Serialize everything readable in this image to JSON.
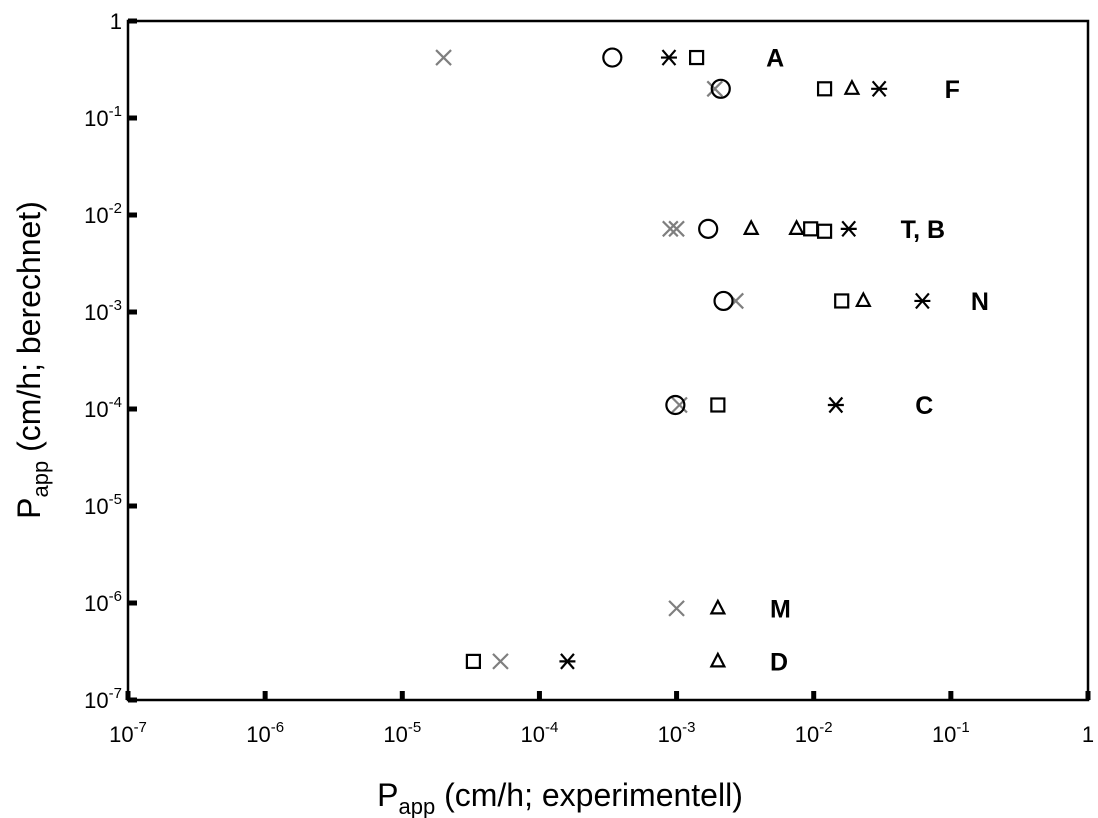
{
  "chart_data": {
    "type": "scatter",
    "xlabel": {
      "main": "P",
      "sub": "app",
      "rest": " (cm/h; experimentell)"
    },
    "ylabel": {
      "main": "P",
      "sub": "app",
      "rest": " (cm/h; berechnet)"
    },
    "x_scale": "log",
    "y_scale": "log",
    "xlim": [
      1e-07,
      1
    ],
    "ylim": [
      1e-07,
      1
    ],
    "grid": false,
    "legend": "none",
    "x_ticks": [
      {
        "base": "10",
        "exp": "-7",
        "value": 1e-07
      },
      {
        "base": "10",
        "exp": "-6",
        "value": 1e-06
      },
      {
        "base": "10",
        "exp": "-5",
        "value": 1e-05
      },
      {
        "base": "10",
        "exp": "-4",
        "value": 0.0001
      },
      {
        "base": "10",
        "exp": "-3",
        "value": 0.001
      },
      {
        "base": "10",
        "exp": "-2",
        "value": 0.01
      },
      {
        "base": "10",
        "exp": "-1",
        "value": 0.1
      },
      {
        "base": "1",
        "exp": "",
        "value": 1
      }
    ],
    "y_ticks": [
      {
        "base": "10",
        "exp": "-7",
        "value": 1e-07
      },
      {
        "base": "10",
        "exp": "-6",
        "value": 1e-06
      },
      {
        "base": "10",
        "exp": "-5",
        "value": 1e-05
      },
      {
        "base": "10",
        "exp": "-4",
        "value": 0.0001
      },
      {
        "base": "10",
        "exp": "-3",
        "value": 0.001
      },
      {
        "base": "10",
        "exp": "-2",
        "value": 0.01
      },
      {
        "base": "10",
        "exp": "-1",
        "value": 0.1
      },
      {
        "base": "1",
        "exp": "",
        "value": 1
      }
    ],
    "series": [
      {
        "marker": "cross",
        "color": "#7f7f7f",
        "points": [
          {
            "x": 2e-05,
            "y": 0.42
          },
          {
            "x": 0.0019,
            "y": 0.2
          },
          {
            "x": 0.0009,
            "y": 0.0072
          },
          {
            "x": 0.001,
            "y": 0.0072
          },
          {
            "x": 0.0027,
            "y": 0.0013
          },
          {
            "x": 0.00105,
            "y": 0.00011
          },
          {
            "x": 0.001,
            "y": 8.8e-07
          },
          {
            "x": 5.2e-05,
            "y": 2.5e-07
          }
        ]
      },
      {
        "marker": "circle",
        "color": "#000000",
        "points": [
          {
            "x": 0.00034,
            "y": 0.42
          },
          {
            "x": 0.0021,
            "y": 0.2
          },
          {
            "x": 0.0017,
            "y": 0.0072
          },
          {
            "x": 0.0022,
            "y": 0.0013
          },
          {
            "x": 0.00098,
            "y": 0.00011
          }
        ]
      },
      {
        "marker": "asterisk",
        "color": "#000000",
        "points": [
          {
            "x": 0.00088,
            "y": 0.42
          },
          {
            "x": 0.03,
            "y": 0.2
          },
          {
            "x": 0.018,
            "y": 0.0072
          },
          {
            "x": 0.062,
            "y": 0.0013
          },
          {
            "x": 0.0145,
            "y": 0.00011
          },
          {
            "x": 0.00016,
            "y": 2.5e-07
          }
        ]
      },
      {
        "marker": "square",
        "color": "#000000",
        "points": [
          {
            "x": 0.0014,
            "y": 0.42
          },
          {
            "x": 0.012,
            "y": 0.2
          },
          {
            "x": 0.0095,
            "y": 0.0072
          },
          {
            "x": 0.012,
            "y": 0.0068
          },
          {
            "x": 0.016,
            "y": 0.0013
          },
          {
            "x": 0.002,
            "y": 0.00011
          },
          {
            "x": 3.3e-05,
            "y": 2.5e-07
          }
        ]
      },
      {
        "marker": "triangle",
        "color": "#000000",
        "points": [
          {
            "x": 0.019,
            "y": 0.2
          },
          {
            "x": 0.0035,
            "y": 0.0072
          },
          {
            "x": 0.0075,
            "y": 0.0072
          },
          {
            "x": 0.023,
            "y": 0.0013
          },
          {
            "x": 0.002,
            "y": 8.8e-07
          },
          {
            "x": 0.002,
            "y": 2.5e-07
          }
        ]
      }
    ],
    "annotations": [
      {
        "text": "A",
        "x": 0.0045,
        "y": 0.42
      },
      {
        "text": "F",
        "x": 0.09,
        "y": 0.2
      },
      {
        "text": "T, B",
        "x": 0.043,
        "y": 0.0072
      },
      {
        "text": "N",
        "x": 0.14,
        "y": 0.0013
      },
      {
        "text": "C",
        "x": 0.055,
        "y": 0.00011
      },
      {
        "text": "M",
        "x": 0.0048,
        "y": 8.8e-07
      },
      {
        "text": "D",
        "x": 0.0048,
        "y": 2.5e-07
      }
    ]
  }
}
